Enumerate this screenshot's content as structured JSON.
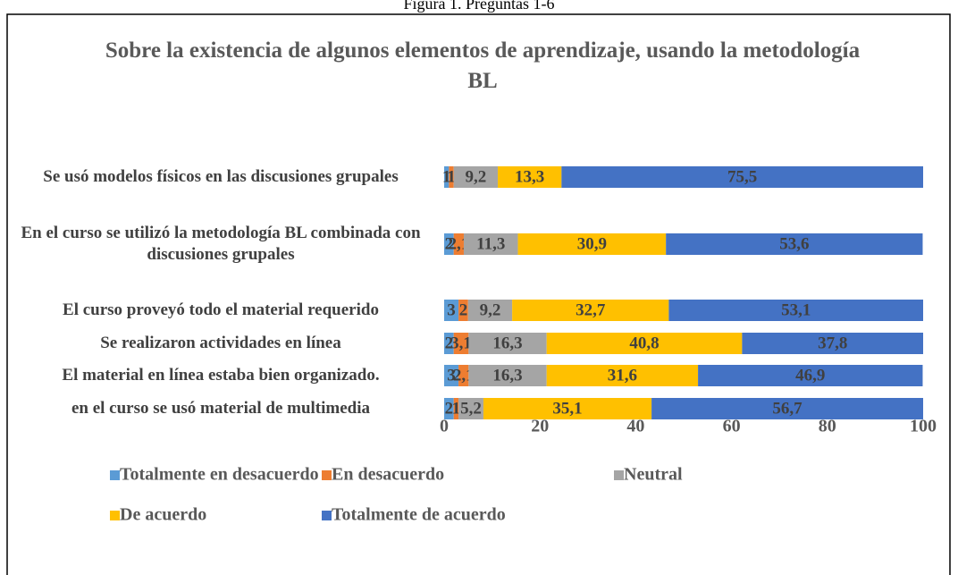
{
  "figure_caption": "Figura 1. Preguntas 1-6",
  "chart_data": {
    "type": "stacked-bar-horizontal",
    "title": "Sobre la existencia de algunos elementos de aprendizaje, usando la metodología BL",
    "categories": [
      "Se usó modelos físicos en las discusiones grupales",
      "En el curso se utilizó la metodología BL combinada con discusiones grupales",
      "El curso proveyó todo el material requerido",
      "Se realizaron actividades en línea",
      "El material en línea estaba bien organizado.",
      "en el curso se usó material de multimedia"
    ],
    "series": [
      {
        "name": "Totalmente en desacuerdo",
        "color": "#5b9bd5",
        "values": [
          1,
          2,
          3,
          2,
          3,
          2
        ],
        "value_labels": [
          "1",
          "2",
          "3",
          "2",
          "3",
          "2"
        ]
      },
      {
        "name": "En desacuerdo",
        "color": "#ed7d31",
        "values": [
          1,
          2.1,
          2,
          3.1,
          2.1,
          1
        ],
        "value_labels": [
          "1",
          "2,1",
          "2",
          "3,1",
          "2,1",
          "1"
        ]
      },
      {
        "name": "Neutral",
        "color": "#a5a5a5",
        "values": [
          9.2,
          11.3,
          9.2,
          16.3,
          16.3,
          5.2
        ],
        "value_labels": [
          "9,2",
          "11,3",
          "9,2",
          "16,3",
          "16,3",
          "5,2"
        ]
      },
      {
        "name": "De acuerdo",
        "color": "#ffc000",
        "values": [
          13.3,
          30.9,
          32.7,
          40.8,
          31.6,
          35.1
        ],
        "value_labels": [
          "13,3",
          "30,9",
          "32,7",
          "40,8",
          "31,6",
          "35,1"
        ]
      },
      {
        "name": "Totalmente de acuerdo",
        "color": "#4472c4",
        "values": [
          75.5,
          53.6,
          53.1,
          37.8,
          46.9,
          56.7
        ],
        "value_labels": [
          "75,5",
          "53,6",
          "53,1",
          "37,8",
          "46,9",
          "56,7"
        ]
      }
    ],
    "xlim": [
      0,
      100
    ],
    "xticks": [
      0,
      20,
      40,
      60,
      80,
      100
    ],
    "legend": "bottom"
  }
}
